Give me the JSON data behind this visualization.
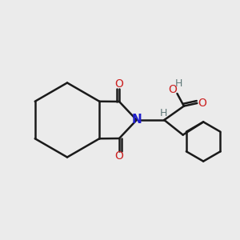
{
  "background_color": "#ebebeb",
  "bond_color": "#1a1a1a",
  "bond_lw": 1.8,
  "N_color": "#2020cc",
  "O_color": "#cc2020",
  "H_color": "#607878",
  "label_fontsize": 10,
  "small_fontsize": 9,
  "xlim": [
    0,
    10
  ],
  "ylim": [
    0,
    10
  ],
  "figsize": [
    3.0,
    3.0
  ],
  "dpi": 100
}
